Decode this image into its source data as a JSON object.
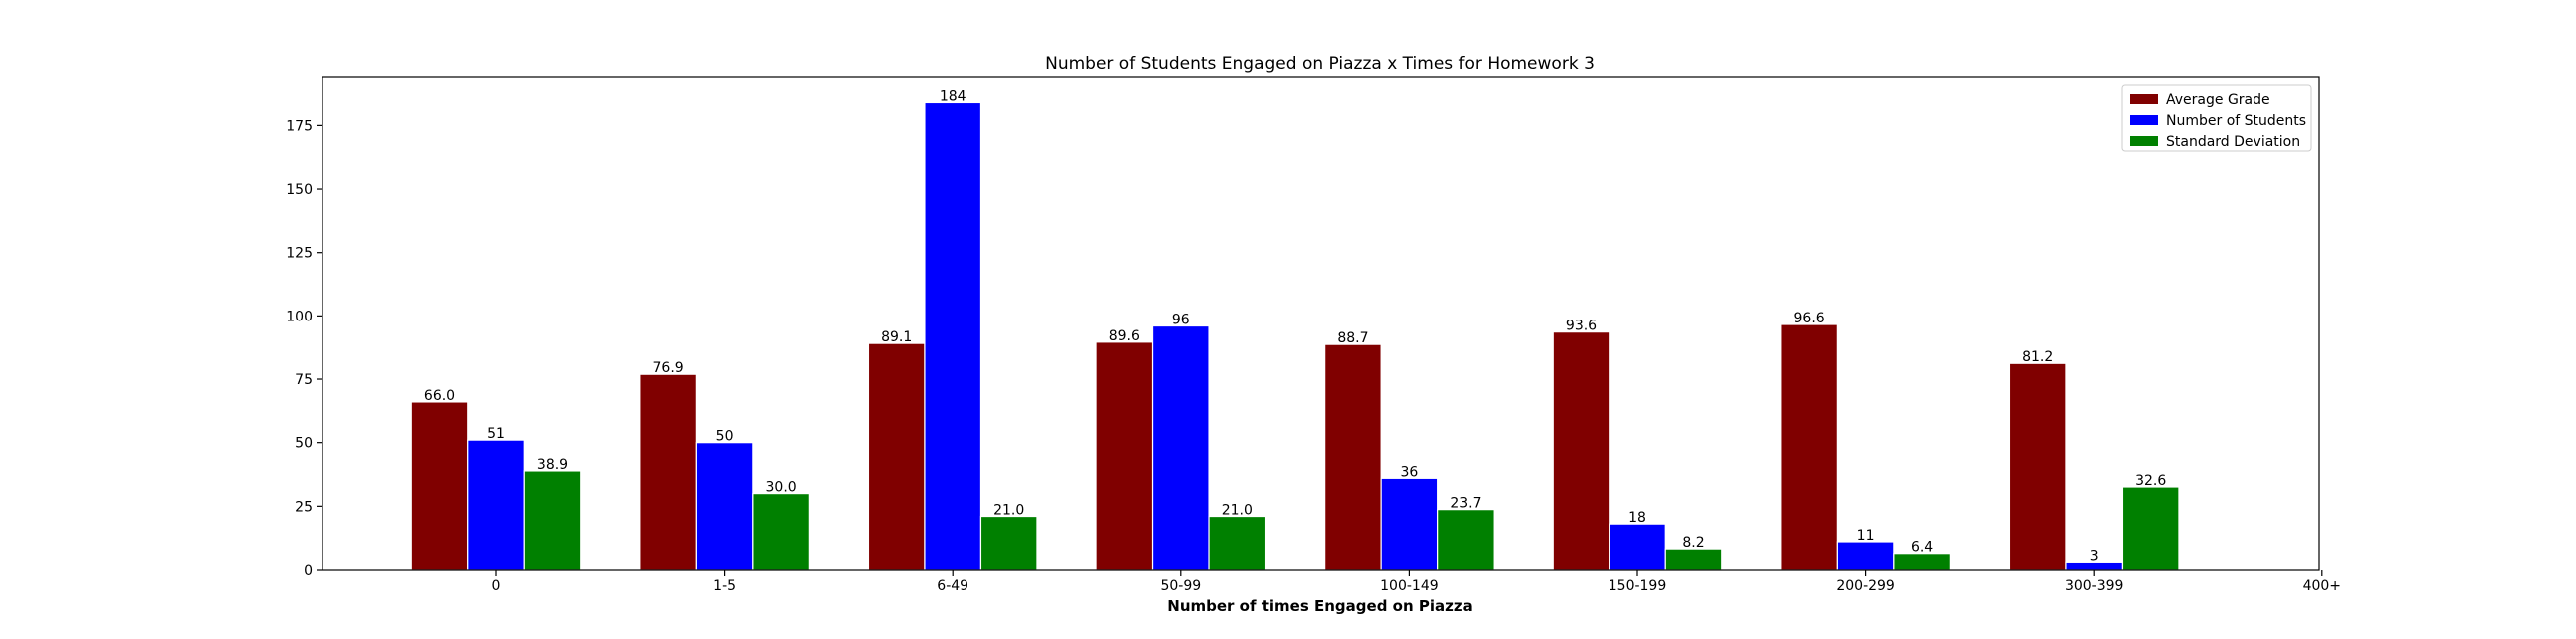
{
  "chart_data": {
    "type": "bar",
    "title": "Number of Students Engaged on Piazza x Times for Homework 3",
    "xlabel": "Number of times Engaged on Piazza",
    "ylabel": "",
    "categories": [
      "0",
      "1-5",
      "6-49",
      "50-99",
      "100-149",
      "150-199",
      "200-299",
      "300-399",
      "400+"
    ],
    "ylim": [
      0,
      194
    ],
    "yticks": [
      0,
      25,
      50,
      75,
      100,
      125,
      150,
      175
    ],
    "grid": false,
    "legend_position": "top-right",
    "series": [
      {
        "name": "Average Grade",
        "color": "#800000",
        "values": [
          66.0,
          76.9,
          89.1,
          89.6,
          88.7,
          93.6,
          96.6,
          81.2,
          null
        ],
        "labels": [
          "66.0",
          "76.9",
          "89.1",
          "89.6",
          "88.7",
          "93.6",
          "96.6",
          "81.2",
          null
        ]
      },
      {
        "name": "Number of Students",
        "color": "#0000ff",
        "values": [
          51,
          50,
          184,
          96,
          36,
          18,
          11,
          3,
          null
        ],
        "labels": [
          "51",
          "50",
          "184",
          "96",
          "36",
          "18",
          "11",
          "3",
          null
        ]
      },
      {
        "name": "Standard Deviation",
        "color": "#008000",
        "values": [
          38.9,
          30.0,
          21.0,
          21.0,
          23.7,
          8.2,
          6.4,
          32.6,
          null
        ],
        "labels": [
          "38.9",
          "30.0",
          "21.0",
          "21.0",
          "23.7",
          "8.2",
          "6.4",
          "32.6",
          null
        ]
      }
    ]
  }
}
